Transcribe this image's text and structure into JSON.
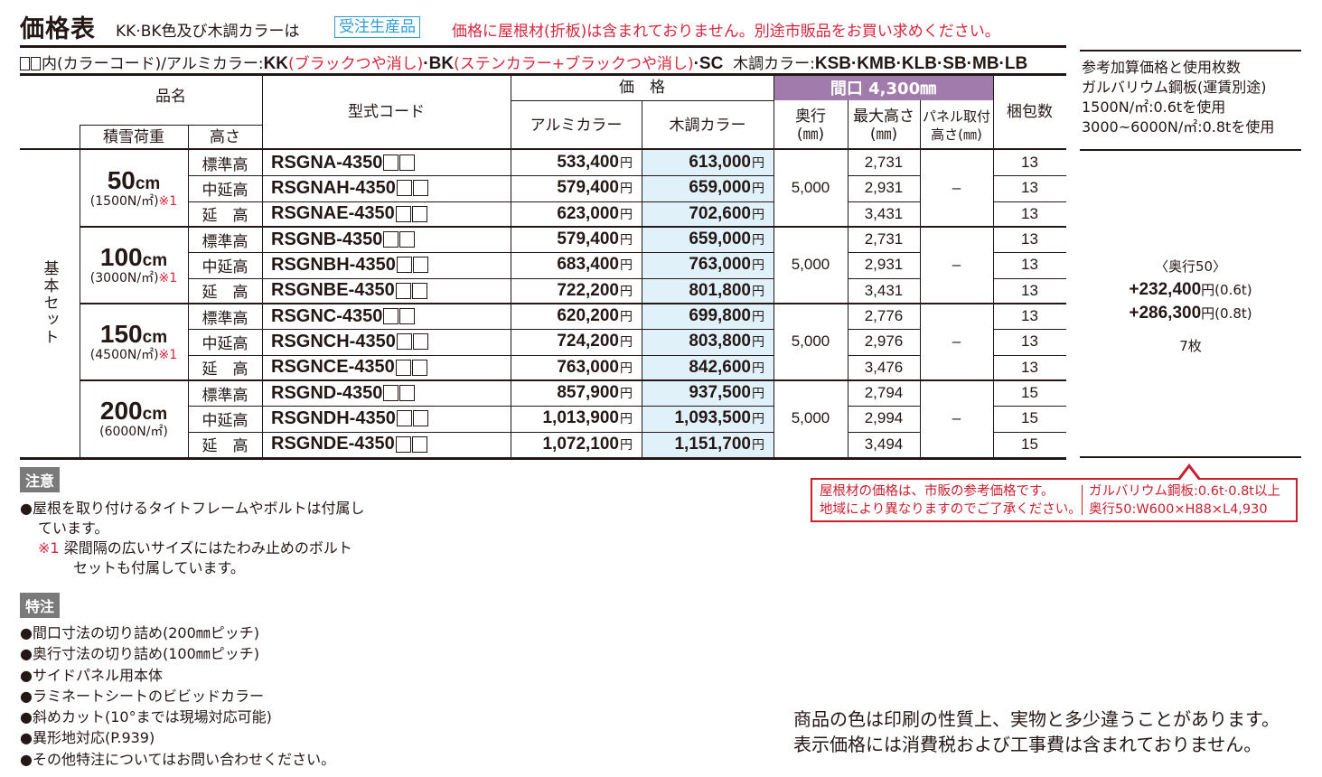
{
  "header": {
    "title": "価格表",
    "subtitle": "KK·BK色及び木調カラーは",
    "order_badge": "受注生産品",
    "roof_note": "価格に屋根材(折板)は含まれておりません。別途市販品をお買い求めください。"
  },
  "color_codes": {
    "prefix": "内(カラーコード)/アルミカラー:",
    "kk": "KK",
    "kk_desc": "(ブラックつや消し)",
    "sep1": "·",
    "bk": "BK",
    "bk_desc": "(ステンカラー+ブラックつや消し)",
    "sc": "·SC",
    "wood_label": "木調カラー:",
    "wood_codes": "KSB·KMB·KLB·SB·MB·LB"
  },
  "table": {
    "headers": {
      "product_name": "品名",
      "snow_load": "積雪荷重",
      "height": "高さ",
      "model_code": "型式コード",
      "price": "価　格",
      "alu_color": "アルミカラー",
      "wood_color": "木調カラー",
      "frontage": "間口 4,300㎜",
      "depth": "奥行",
      "depth_unit": "(㎜)",
      "max_height": "最大高さ",
      "max_height_unit": "(㎜)",
      "panel_height_1": "パネル取付",
      "panel_height_2": "高さ(㎜)",
      "pack_count": "梱包数"
    },
    "set_label": "基本セット",
    "yen": "円",
    "groups": [
      {
        "snow": "50",
        "snow_unit": "cm",
        "load": "(1500N/㎡)",
        "mark": "※1",
        "depth": "5,000",
        "panel": "–",
        "rows": [
          {
            "height": "標準高",
            "model": "RSGNA-4350",
            "alu": "533,400",
            "wood": "613,000",
            "max_h": "2,731",
            "pack": "13"
          },
          {
            "height": "中延高",
            "model": "RSGNAH-4350",
            "alu": "579,400",
            "wood": "659,000",
            "max_h": "2,931",
            "pack": "13"
          },
          {
            "height": "延　高",
            "model": "RSGNAE-4350",
            "alu": "623,000",
            "wood": "702,600",
            "max_h": "3,431",
            "pack": "13"
          }
        ]
      },
      {
        "snow": "100",
        "snow_unit": "cm",
        "load": "(3000N/㎡)",
        "mark": "※1",
        "depth": "5,000",
        "panel": "–",
        "rows": [
          {
            "height": "標準高",
            "model": "RSGNB-4350",
            "alu": "579,400",
            "wood": "659,000",
            "max_h": "2,731",
            "pack": "13"
          },
          {
            "height": "中延高",
            "model": "RSGNBH-4350",
            "alu": "683,400",
            "wood": "763,000",
            "max_h": "2,931",
            "pack": "13"
          },
          {
            "height": "延　高",
            "model": "RSGNBE-4350",
            "alu": "722,200",
            "wood": "801,800",
            "max_h": "3,431",
            "pack": "13"
          }
        ]
      },
      {
        "snow": "150",
        "snow_unit": "cm",
        "load": "(4500N/㎡)",
        "mark": "※1",
        "depth": "5,000",
        "panel": "–",
        "rows": [
          {
            "height": "標準高",
            "model": "RSGNC-4350",
            "alu": "620,200",
            "wood": "699,800",
            "max_h": "2,776",
            "pack": "13"
          },
          {
            "height": "中延高",
            "model": "RSGNCH-4350",
            "alu": "724,200",
            "wood": "803,800",
            "max_h": "2,976",
            "pack": "13"
          },
          {
            "height": "延　高",
            "model": "RSGNCE-4350",
            "alu": "763,000",
            "wood": "842,600",
            "max_h": "3,476",
            "pack": "13"
          }
        ]
      },
      {
        "snow": "200",
        "snow_unit": "cm",
        "load": "(6000N/㎡)",
        "mark": "",
        "depth": "5,000",
        "panel": "–",
        "rows": [
          {
            "height": "標準高",
            "model": "RSGND-4350",
            "alu": "857,900",
            "wood": "937,500",
            "max_h": "2,794",
            "pack": "15"
          },
          {
            "height": "中延高",
            "model": "RSGNDH-4350",
            "alu": "1,013,900",
            "wood": "1,093,500",
            "max_h": "2,994",
            "pack": "15"
          },
          {
            "height": "延　高",
            "model": "RSGNDE-4350",
            "alu": "1,072,100",
            "wood": "1,151,700",
            "max_h": "3,494",
            "pack": "15"
          }
        ]
      }
    ]
  },
  "reference": {
    "lines": [
      "参考加算価格と使用枚数",
      "ガルバリウム鋼板(運賃別途)",
      "1500N/㎡:0.6tを使用",
      "3000~6000N/㎡:0.8tを使用"
    ],
    "depth_label": "〈奥行50〉",
    "price1": "+232,400",
    "price1_unit": "円",
    "price1_note": "(0.6t)",
    "price2": "+286,300",
    "price2_unit": "円",
    "price2_note": "(0.8t)",
    "sheets": "7枚"
  },
  "notice": {
    "left": [
      "屋根材の価格は、市販の参考価格です。",
      "地域により異なりますのでご了承ください。"
    ],
    "right": [
      "ガルバリウム鋼板:0.6t·0.8t以上",
      "奥行50:W600×H88×L4,930"
    ]
  },
  "caution": {
    "tag": "注意",
    "item1_a": "●屋根を取り付けるタイトフレームやボルトは付属し",
    "item1_b": "ています。",
    "mark": "※1",
    "item2_a": "梁間隔の広いサイズにはたわみ止めのボルト",
    "item2_b": "セットも付属しています。"
  },
  "special": {
    "tag": "特注",
    "items": [
      "●間口寸法の切り詰め(200㎜ピッチ)",
      "●奥行寸法の切り詰め(100㎜ピッチ)",
      "●サイドパネル用本体",
      "●ラミネートシートのビビッドカラー",
      "●斜めカット(10°までは現場対応可能)",
      "●異形地対応(P.939)",
      "●その他特注についてはお問い合わせください。"
    ]
  },
  "footer": {
    "line1": "商品の色は印刷の性質上、実物と多少違うことがあります。",
    "line2": "表示価格には消費税および工事費は含まれておりません。"
  },
  "colors": {
    "accent_red": "#d7263d",
    "badge_blue": "#2e9bd6",
    "header_purple": "#a17bab",
    "wood_bg": "#e1f1fa",
    "tag_gray": "#7a7a7a"
  }
}
